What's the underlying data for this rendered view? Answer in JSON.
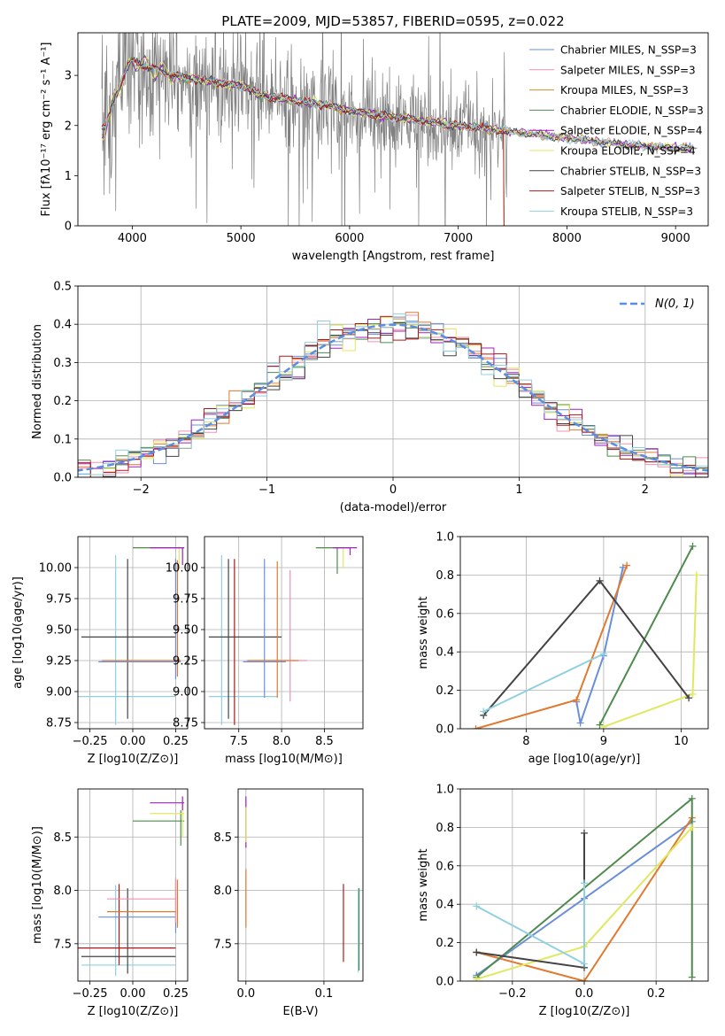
{
  "colors": {
    "chabrier_miles": "#6a8fd8",
    "salpeter_miles": "#f092b0",
    "kroupa_miles": "#c8902a",
    "chabrier_elodie": "#4f8a4f",
    "salpeter_elodie": "#a020c0",
    "kroupa_elodie": "#e0e860",
    "chabrier_stelib": "#444444",
    "salpeter_stelib": "#b01818",
    "kroupa_stelib": "#90d0e0",
    "orange": "#e07a30",
    "gauss": "#5b8ee0",
    "data": "#808080"
  },
  "chart_data": [
    {
      "type": "line",
      "title": "PLATE=2009, MJD=53857, FIBERID=0595, z=0.022",
      "xlabel": "wavelength [Angstrom, rest frame]",
      "ylabel": "Flux [fλ10⁻¹⁷ erg cm⁻² s⁻¹ A⁻¹]",
      "xlim": [
        3500,
        9300
      ],
      "ylim": [
        0,
        3.85
      ],
      "xticks": [
        "4000",
        "5000",
        "6000",
        "7000",
        "8000",
        "9000"
      ],
      "yticks": [
        "0",
        "1",
        "2",
        "3"
      ],
      "legend": "top-right",
      "legend_entries": [
        "Chabrier MILES, N_SSP=3",
        "Salpeter MILES, N_SSP=3",
        "Kroupa MILES, N_SSP=3",
        "Chabrier ELODIE, N_SSP=3",
        "Salpeter ELODIE, N_SSP=4",
        "Kroupa ELODIE, N_SSP=4",
        "Chabrier STELIB, N_SSP=3",
        "Salpeter STELIB, N_SSP=3",
        "Kroupa STELIB, N_SSP=3"
      ],
      "model_continuum": {
        "x": [
          3750,
          3900,
          4000,
          4100,
          4300,
          4500,
          4800,
          5000,
          5200,
          5500,
          5800,
          6000,
          6300,
          6600,
          7000,
          7400,
          7800,
          8200,
          8600,
          9000
        ],
        "y": [
          1.95,
          2.9,
          3.3,
          3.2,
          3.05,
          2.95,
          2.85,
          2.8,
          2.6,
          2.5,
          2.4,
          2.3,
          2.2,
          2.1,
          2.0,
          1.9,
          1.8,
          1.7,
          1.6,
          1.55
        ]
      }
    },
    {
      "type": "line",
      "xlabel": "(data-model)/error",
      "ylabel": "Normed distribution",
      "xlim": [
        -2.5,
        2.5
      ],
      "ylim": [
        0,
        0.5
      ],
      "xticks": [
        "−2",
        "−1",
        "0",
        "1",
        "2"
      ],
      "yticks": [
        "0.0",
        "0.1",
        "0.2",
        "0.3",
        "0.4",
        "0.5"
      ],
      "legend": "top-right",
      "legend_label": "N(0, 1)"
    },
    {
      "type": "scatter",
      "xlabel": "Z [log10(Z/Z⊙)]",
      "ylabel": "age  [log10(age/yr)]",
      "xlim": [
        -0.32,
        0.32
      ],
      "ylim": [
        8.7,
        10.25
      ],
      "xticks": [
        "−0.25",
        "0.00",
        "0.25"
      ],
      "yticks": [
        "8.75",
        "9.00",
        "9.25",
        "9.50",
        "9.75",
        "10.00"
      ]
    },
    {
      "type": "scatter",
      "xlabel": "mass [log10(M/M⊙)]",
      "xlim": [
        7.1,
        8.95
      ],
      "ylim": [
        8.7,
        10.25
      ],
      "xticks": [
        "7.5",
        "8.0",
        "8.5"
      ],
      "yticks": [
        "8.75",
        "9.00",
        "9.25",
        "9.50",
        "9.75",
        "10.00"
      ]
    },
    {
      "type": "line",
      "xlabel": "age  [log10(age/yr)]",
      "ylabel": "mass weight",
      "xlim": [
        7.15,
        10.35
      ],
      "ylim": [
        0,
        1
      ],
      "xticks": [
        "8",
        "9",
        "10"
      ],
      "yticks": [
        "0.0",
        "0.2",
        "0.4",
        "0.6",
        "0.8",
        "1.0"
      ],
      "series": [
        {
          "color": "chabrier_miles",
          "x": [
            8.65,
            8.7,
            9.0,
            9.25
          ],
          "y": [
            0.14,
            0.03,
            0.38,
            0.84
          ]
        },
        {
          "color": "orange",
          "x": [
            7.35,
            8.65,
            9.3
          ],
          "y": [
            0.0,
            0.15,
            0.85
          ]
        },
        {
          "color": "chabrier_elodie",
          "x": [
            8.95,
            10.15
          ],
          "y": [
            0.02,
            0.95
          ]
        },
        {
          "color": "kroupa_elodie",
          "x": [
            9.0,
            10.15,
            10.2
          ],
          "y": [
            0.01,
            0.18,
            0.8
          ]
        },
        {
          "color": "chabrier_stelib",
          "x": [
            7.45,
            8.95,
            10.1
          ],
          "y": [
            0.07,
            0.77,
            0.16
          ]
        },
        {
          "color": "kroupa_stelib",
          "x": [
            7.45,
            9.0
          ],
          "y": [
            0.09,
            0.39
          ]
        }
      ]
    },
    {
      "type": "scatter",
      "xlabel": "Z [log10(Z/Z⊙)]",
      "ylabel": "mass [log10(M/M⊙)]",
      "xlim": [
        -0.32,
        0.32
      ],
      "ylim": [
        7.15,
        8.95
      ],
      "xticks": [
        "−0.25",
        "0.00",
        "0.25"
      ],
      "yticks": [
        "7.5",
        "8.0",
        "8.5"
      ]
    },
    {
      "type": "scatter",
      "xlabel": "E(B-V)",
      "xlim": [
        -0.01,
        0.15
      ],
      "ylim": [
        7.15,
        8.95
      ],
      "xticks": [
        "0.0",
        "0.1"
      ],
      "yticks": [
        "7.5",
        "8.0",
        "8.5"
      ]
    },
    {
      "type": "line",
      "xlabel": "Z [log10(Z/Z⊙)]",
      "ylabel": "mass weight",
      "xlim": [
        -0.345,
        0.345
      ],
      "ylim": [
        0,
        1
      ],
      "xticks": [
        "−0.2",
        "0.0",
        "0.2"
      ],
      "yticks": [
        "0.0",
        "0.2",
        "0.4",
        "0.6",
        "0.8",
        "1.0"
      ],
      "series": [
        {
          "color": "chabrier_miles",
          "x": [
            -0.3,
            0.0,
            0.3
          ],
          "y": [
            0.03,
            0.43,
            0.83
          ]
        },
        {
          "color": "orange",
          "x": [
            -0.3,
            0.0,
            0.3
          ],
          "y": [
            0.15,
            0.0,
            0.85
          ]
        },
        {
          "color": "chabrier_elodie",
          "x": [
            -0.3,
            0.3,
            0.3
          ],
          "y": [
            0.02,
            0.95,
            0.02
          ]
        },
        {
          "color": "kroupa_elodie",
          "x": [
            -0.3,
            0.0,
            0.3
          ],
          "y": [
            0.01,
            0.18,
            0.8
          ]
        },
        {
          "color": "chabrier_stelib",
          "x": [
            -0.3,
            0.0,
            0.0
          ],
          "y": [
            0.15,
            0.07,
            0.77
          ]
        },
        {
          "color": "kroupa_stelib",
          "x": [
            -0.3,
            0.0,
            0.0
          ],
          "y": [
            0.39,
            0.09,
            0.51
          ]
        }
      ]
    }
  ]
}
